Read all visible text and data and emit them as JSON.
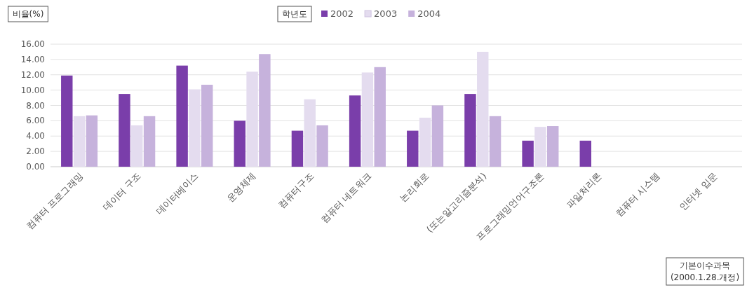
{
  "chart_data": {
    "type": "bar",
    "ylabel": "비율(%)",
    "legend_title": "학년도",
    "xlabel": "기본이수과목\n(2000.1.28.개정)",
    "categories": [
      "컴퓨터 프로그래밍",
      "데이터 구조",
      "데이터베이스",
      "운영체제",
      "컴퓨터구조",
      "컴퓨터 네트워크",
      "논리회로",
      "(또는알고리즘분석)",
      "프로그래밍언어구조론",
      "파일처리론",
      "컴퓨터 시스템",
      "인터넷 입문"
    ],
    "series": [
      {
        "name": "2002",
        "color": "#7a3eaa",
        "values": [
          11.9,
          9.5,
          13.2,
          6.0,
          4.7,
          9.3,
          4.7,
          9.5,
          3.4,
          3.4,
          null,
          null
        ]
      },
      {
        "name": "2003",
        "color": "#e4dcef",
        "values": [
          6.6,
          5.4,
          10.1,
          12.4,
          8.8,
          12.3,
          6.4,
          15.0,
          5.2,
          null,
          null,
          null
        ]
      },
      {
        "name": "2004",
        "color": "#c6b2dc",
        "values": [
          6.7,
          6.6,
          10.7,
          14.7,
          5.4,
          13.0,
          8.0,
          6.6,
          5.3,
          null,
          null,
          null
        ]
      }
    ],
    "ylim": [
      0,
      16
    ],
    "yticks": [
      {
        "value": 0,
        "label": "0.00"
      },
      {
        "value": 2,
        "label": "2.00"
      },
      {
        "value": 4,
        "label": "4.00"
      },
      {
        "value": 6,
        "label": "6.00"
      },
      {
        "value": 8,
        "label": "8.00"
      },
      {
        "value": 10,
        "label": "10.00"
      },
      {
        "value": 12,
        "label": "12.00"
      },
      {
        "value": 14,
        "label": "14.00"
      },
      {
        "value": 16,
        "label": "16.00"
      }
    ],
    "grid": "y",
    "legend": "top"
  }
}
